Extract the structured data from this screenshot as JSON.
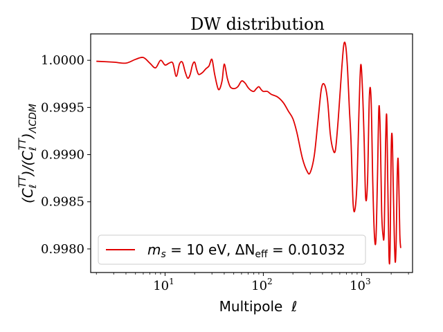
{
  "chart_data": {
    "type": "line",
    "title": "DW distribution",
    "xlabel": "Multipole  ℓ",
    "ylabel": "(CℓTT)/(CℓTT)ΛCDM",
    "xscale": "log",
    "xlim": [
      1.75,
      3300
    ],
    "ylim": [
      0.99775,
      1.00028
    ],
    "x_ticks": [
      {
        "value": 10,
        "label": "10",
        "exp": "1"
      },
      {
        "value": 100,
        "label": "10",
        "exp": "2"
      },
      {
        "value": 1000,
        "label": "10",
        "exp": "3"
      }
    ],
    "y_ticks": [
      {
        "value": 0.998,
        "label": "0.9980"
      },
      {
        "value": 0.9985,
        "label": "0.9985"
      },
      {
        "value": 0.999,
        "label": "0.9990"
      },
      {
        "value": 0.9995,
        "label": "0.9995"
      },
      {
        "value": 1.0,
        "label": "1.0000"
      }
    ],
    "grid": false,
    "legend_position": "lower-left",
    "series": [
      {
        "name": "m_s = 10 eV, ΔN_eff = 0.01032",
        "legend_main": "m",
        "legend_sub1": "s",
        "legend_mid": " = 10 eV, ΔN",
        "legend_sub2": "eff",
        "legend_end": " = 0.01032",
        "color": "#e00000",
        "x": [
          2,
          3,
          4,
          5,
          6,
          7,
          8,
          9,
          10,
          11,
          12,
          13,
          14,
          15,
          16,
          17,
          18,
          19,
          20,
          21,
          22,
          24,
          26,
          28,
          30,
          32,
          35,
          38,
          40,
          43,
          46,
          50,
          55,
          60,
          65,
          70,
          75,
          80,
          85,
          90,
          95,
          100,
          110,
          120,
          140,
          160,
          180,
          200,
          220,
          250,
          280,
          300,
          330,
          360,
          390,
          420,
          450,
          480,
          510,
          540,
          570,
          600,
          630,
          660,
          690,
          720,
          750,
          780,
          820,
          860,
          900,
          940,
          980,
          1020,
          1060,
          1100,
          1150,
          1200,
          1250,
          1300,
          1350,
          1400,
          1450,
          1500,
          1550,
          1600,
          1650,
          1700,
          1750,
          1800,
          1850,
          1900,
          1950,
          2000,
          2050,
          2100,
          2150,
          2200,
          2250,
          2300,
          2350,
          2400,
          2450,
          2500
        ],
        "y": [
          0.99999,
          0.99998,
          0.99997,
          1.00001,
          1.00003,
          0.99997,
          0.99992,
          1.0,
          0.99995,
          0.99997,
          0.99997,
          0.99983,
          0.99996,
          0.99998,
          0.99988,
          0.99981,
          0.99985,
          0.99995,
          0.99998,
          0.9999,
          0.99985,
          0.99987,
          0.99991,
          0.99994,
          1.00001,
          0.99985,
          0.99969,
          0.99978,
          0.99996,
          0.99981,
          0.99972,
          0.9997,
          0.99972,
          0.99978,
          0.99976,
          0.99971,
          0.99968,
          0.99967,
          0.9997,
          0.99972,
          0.99969,
          0.99967,
          0.99967,
          0.99964,
          0.99961,
          0.99955,
          0.99946,
          0.99938,
          0.99923,
          0.99896,
          0.99882,
          0.99881,
          0.99899,
          0.99936,
          0.9997,
          0.99974,
          0.99958,
          0.99922,
          0.99906,
          0.99904,
          0.99929,
          0.99961,
          0.99993,
          1.00017,
          1.00015,
          0.9999,
          0.9995,
          0.99915,
          0.99848,
          0.99843,
          0.99873,
          0.99945,
          0.99995,
          0.9997,
          0.99918,
          0.99854,
          0.99872,
          0.99962,
          0.99958,
          0.9987,
          0.99815,
          0.9981,
          0.99875,
          0.9995,
          0.99922,
          0.9984,
          0.99815,
          0.99818,
          0.99905,
          0.99942,
          0.99866,
          0.99792,
          0.99799,
          0.99905,
          0.99919,
          0.99867,
          0.99815,
          0.99786,
          0.99808,
          0.99873,
          0.99896,
          0.99862,
          0.99815,
          0.99801
        ]
      }
    ]
  }
}
